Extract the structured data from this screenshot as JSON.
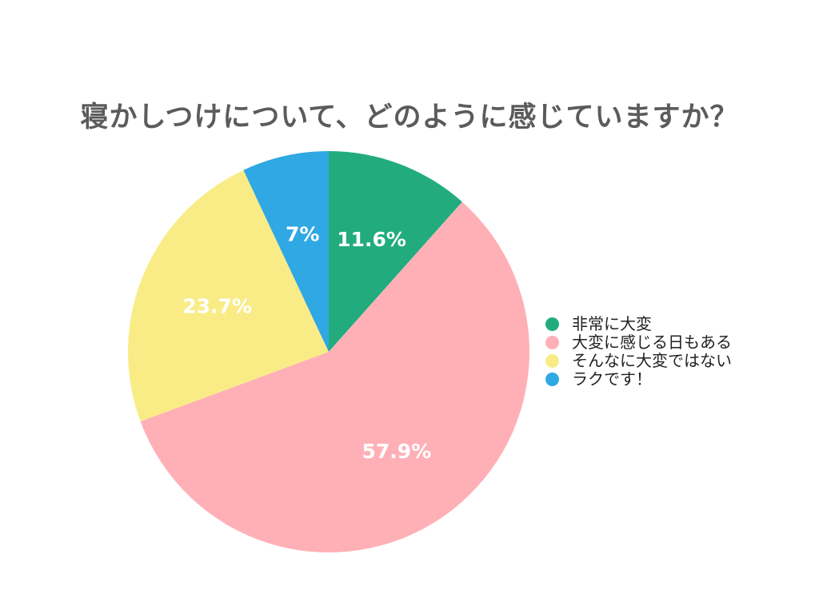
{
  "chart_data": {
    "type": "pie",
    "title": "寝かしつけについて、どのように感じていますか？",
    "slices": [
      {
        "label": "非常に大変",
        "value": 11.6,
        "display": "11.6%",
        "color": "#22ac7e"
      },
      {
        "label": "大変に感じる日もある",
        "value": 57.9,
        "display": "57.9%",
        "color": "#ffb0b6"
      },
      {
        "label": "そんなに大変ではない",
        "value": 23.7,
        "display": "23.7%",
        "color": "#f9ec87"
      },
      {
        "label": "ラクです！",
        "value": 7,
        "display": "7%",
        "color": "#2fa8e3"
      }
    ],
    "legend_position": "right",
    "start_angle": "top",
    "direction": "clockwise"
  }
}
